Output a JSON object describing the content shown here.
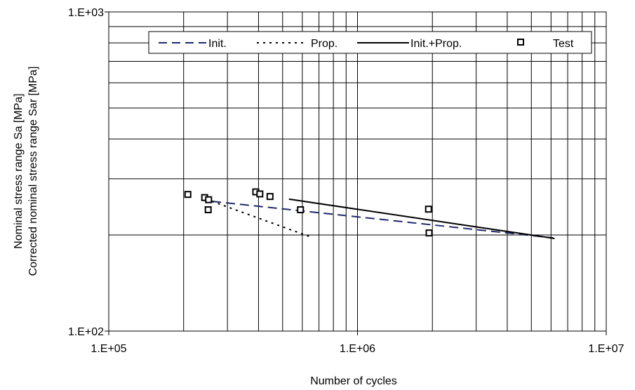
{
  "chart_data": {
    "type": "line",
    "title": "",
    "xlabel": "Number of cycles",
    "ylabel": [
      "Nominal stress range Sa [MPa]",
      "Corrected nominal stress range Sar [MPa]"
    ],
    "xscale": "log",
    "yscale": "log",
    "xlim": [
      100000,
      10000000
    ],
    "ylim": [
      100,
      1000
    ],
    "x_tick_labels": [
      "1.E+05",
      "1.E+06",
      "1.E+07"
    ],
    "y_tick_labels": [
      "1.E+02",
      "1.E+03"
    ],
    "grid": true,
    "legend_position": "top",
    "series": [
      {
        "name": "Init.",
        "style": "dashed",
        "color": "#1f2a6b",
        "points": [
          [
            260000,
            255
          ],
          [
            6100000,
            196
          ]
        ]
      },
      {
        "name": "Prop.",
        "style": "dotted",
        "color": "#000000",
        "points": [
          [
            260000,
            255
          ],
          [
            650000,
            197
          ]
        ]
      },
      {
        "name": "Init.+Prop.",
        "style": "solid",
        "color": "#000000",
        "points": [
          [
            530000,
            259
          ],
          [
            6200000,
            195
          ]
        ]
      },
      {
        "name": "Test",
        "style": "marker",
        "color": "#000000",
        "points": [
          [
            208000,
            268
          ],
          [
            243000,
            262
          ],
          [
            252000,
            258
          ],
          [
            251000,
            240
          ],
          [
            390000,
            273
          ],
          [
            405000,
            269
          ],
          [
            445000,
            264
          ],
          [
            590000,
            240
          ],
          [
            1930000,
            241
          ],
          [
            1940000,
            203
          ]
        ]
      }
    ]
  }
}
